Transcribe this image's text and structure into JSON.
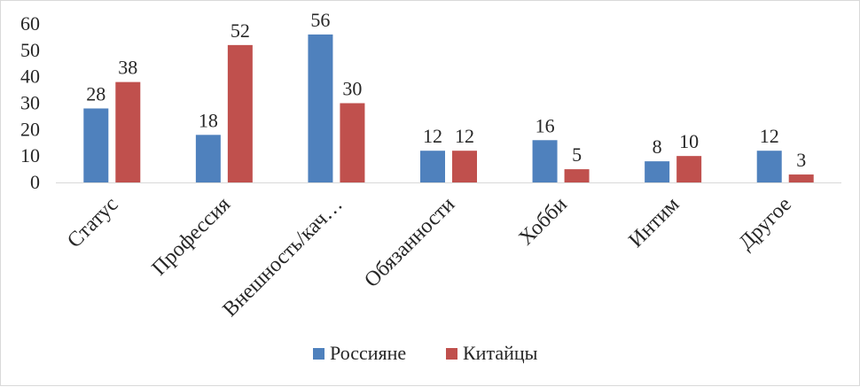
{
  "chart_data": {
    "type": "bar",
    "title": "",
    "xlabel": "",
    "ylabel": "",
    "categories": [
      "Статус",
      "Профессия",
      "Внешность/кач…",
      "Обязанности",
      "Хобби",
      "Интим",
      "Другое"
    ],
    "series": [
      {
        "name": "Россияне",
        "color": "#4f81bd",
        "values": [
          28,
          18,
          56,
          12,
          16,
          8,
          12
        ]
      },
      {
        "name": "Китайцы",
        "color": "#c0504d",
        "values": [
          38,
          52,
          30,
          12,
          5,
          10,
          3
        ]
      }
    ],
    "ylim": [
      0,
      60
    ],
    "yticks": [
      0,
      10,
      20,
      30,
      40,
      50,
      60
    ],
    "grid": false,
    "legend_position": "bottom"
  }
}
